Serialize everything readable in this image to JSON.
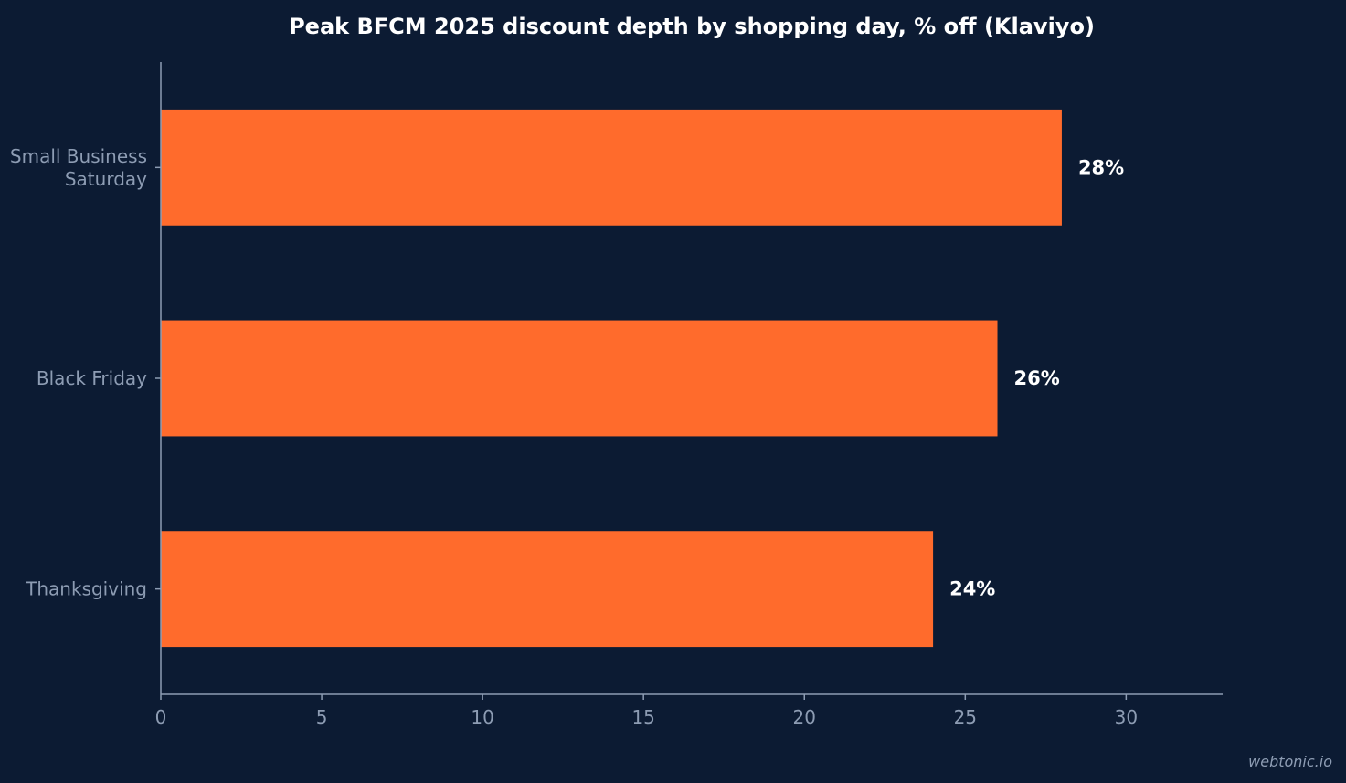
{
  "chart_data": {
    "type": "bar",
    "orientation": "horizontal",
    "title": "Peak BFCM 2025 discount depth by shopping day, % off (Klaviyo)",
    "categories": [
      [
        "Small Business",
        "Saturday"
      ],
      [
        "Black Friday"
      ],
      [
        "Thanksgiving"
      ]
    ],
    "values": [
      28,
      26,
      24
    ],
    "value_labels": [
      "28%",
      "26%",
      "24%"
    ],
    "xlabel": "",
    "ylabel": "",
    "xlim": [
      0,
      33
    ],
    "xticks": [
      0,
      5,
      10,
      15,
      20,
      25,
      30
    ],
    "grid": false,
    "legend": "none",
    "bar_color": "#ff6b2c"
  },
  "colors": {
    "background": "#0c1b33",
    "axis": "#8d9cb3",
    "title": "#ffffff",
    "data_label": "#ffffff"
  },
  "watermark": "webtonic.io"
}
